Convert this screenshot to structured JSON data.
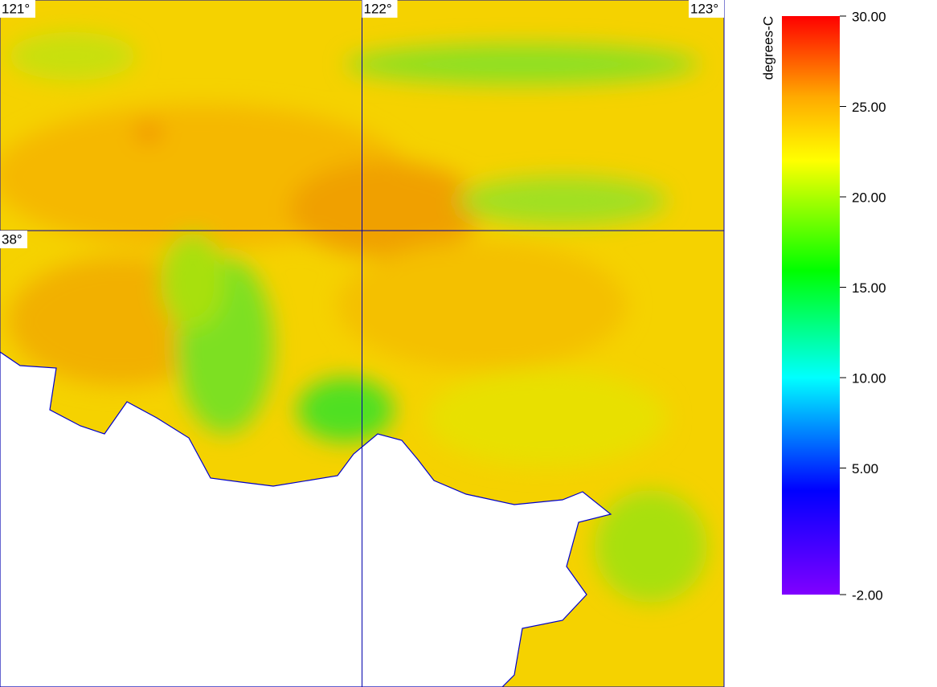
{
  "map": {
    "longitudes": [
      {
        "value": 121,
        "label": "121°"
      },
      {
        "value": 122,
        "label": "122°"
      },
      {
        "value": 123,
        "label": "123°"
      }
    ],
    "latitudes": [
      {
        "value": 38,
        "label": "38°"
      }
    ]
  },
  "colorbar": {
    "title": "degrees-C",
    "lim": [
      -2,
      30
    ],
    "ticks": [
      {
        "value": 30,
        "label": "30.00"
      },
      {
        "value": 25,
        "label": "25.00"
      },
      {
        "value": 20,
        "label": "20.00"
      },
      {
        "value": 15,
        "label": "15.00"
      },
      {
        "value": 10,
        "label": "10.00"
      },
      {
        "value": 5,
        "label": "5.00"
      },
      {
        "value": -2,
        "label": "-2.00"
      }
    ]
  }
}
